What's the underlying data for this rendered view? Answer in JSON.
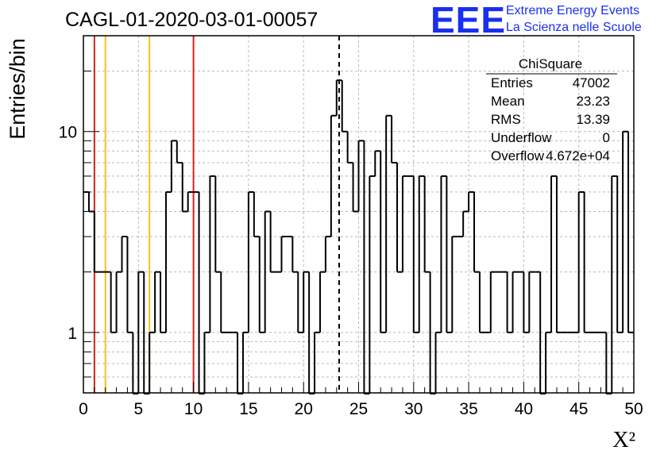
{
  "chart_data": {
    "type": "histogram",
    "title": "CAGL-01-2020-03-01-00057",
    "xlabel": "X²",
    "ylabel": "Entries/bin",
    "xlim": [
      0,
      50
    ],
    "ylim": [
      0.5,
      30
    ],
    "yscale": "log",
    "grid": true,
    "bin_width": 0.5,
    "x_ticks": [
      "0",
      "5",
      "10",
      "15",
      "20",
      "25",
      "30",
      "35",
      "40",
      "45",
      "50"
    ],
    "y_ticks": [
      {
        "value": 1,
        "label": "1"
      },
      {
        "value": 10,
        "label": "10"
      }
    ],
    "values": [
      5,
      4,
      2,
      2,
      2,
      1,
      2,
      3,
      1,
      0,
      2,
      0,
      1,
      2,
      1,
      5,
      9,
      7,
      4,
      5,
      5,
      0,
      1,
      6,
      2,
      1,
      1,
      1,
      0,
      1,
      5,
      3,
      1,
      4,
      2,
      2,
      3,
      3,
      2,
      1,
      2,
      0,
      1,
      2,
      3,
      12,
      18,
      10,
      7,
      4,
      9,
      0,
      6,
      8,
      1,
      12,
      7,
      2,
      6,
      6,
      1,
      6,
      2,
      0,
      1,
      6,
      1,
      3,
      3,
      4,
      5,
      2,
      1,
      1,
      2,
      2,
      2,
      1,
      2,
      2,
      1,
      2,
      2,
      0,
      1,
      6,
      1,
      1,
      1,
      1,
      5,
      1,
      1,
      1,
      1,
      0,
      6,
      1,
      10,
      1
    ],
    "reference_lines": [
      {
        "x": 1,
        "color": "#d42020",
        "style": "solid"
      },
      {
        "x": 2,
        "color": "#f2c21a",
        "style": "solid"
      },
      {
        "x": 6,
        "color": "#f2c21a",
        "style": "solid"
      },
      {
        "x": 10,
        "color": "#d42020",
        "style": "solid"
      },
      {
        "x": 23.23,
        "color": "#000000",
        "style": "dashed"
      }
    ],
    "stats_box": {
      "title": "ChiSquare",
      "rows": [
        {
          "label": "Entries",
          "value": "47002"
        },
        {
          "label": "Mean",
          "value": "23.23"
        },
        {
          "label": "RMS",
          "value": "13.39"
        },
        {
          "label": "Underflow",
          "value": "0"
        },
        {
          "label": "Overflow",
          "value": "4.672e+04"
        }
      ]
    }
  },
  "logo": {
    "mark": "EEE",
    "line1": "Extreme Energy Events",
    "line2": "La Scienza nelle Scuole"
  }
}
